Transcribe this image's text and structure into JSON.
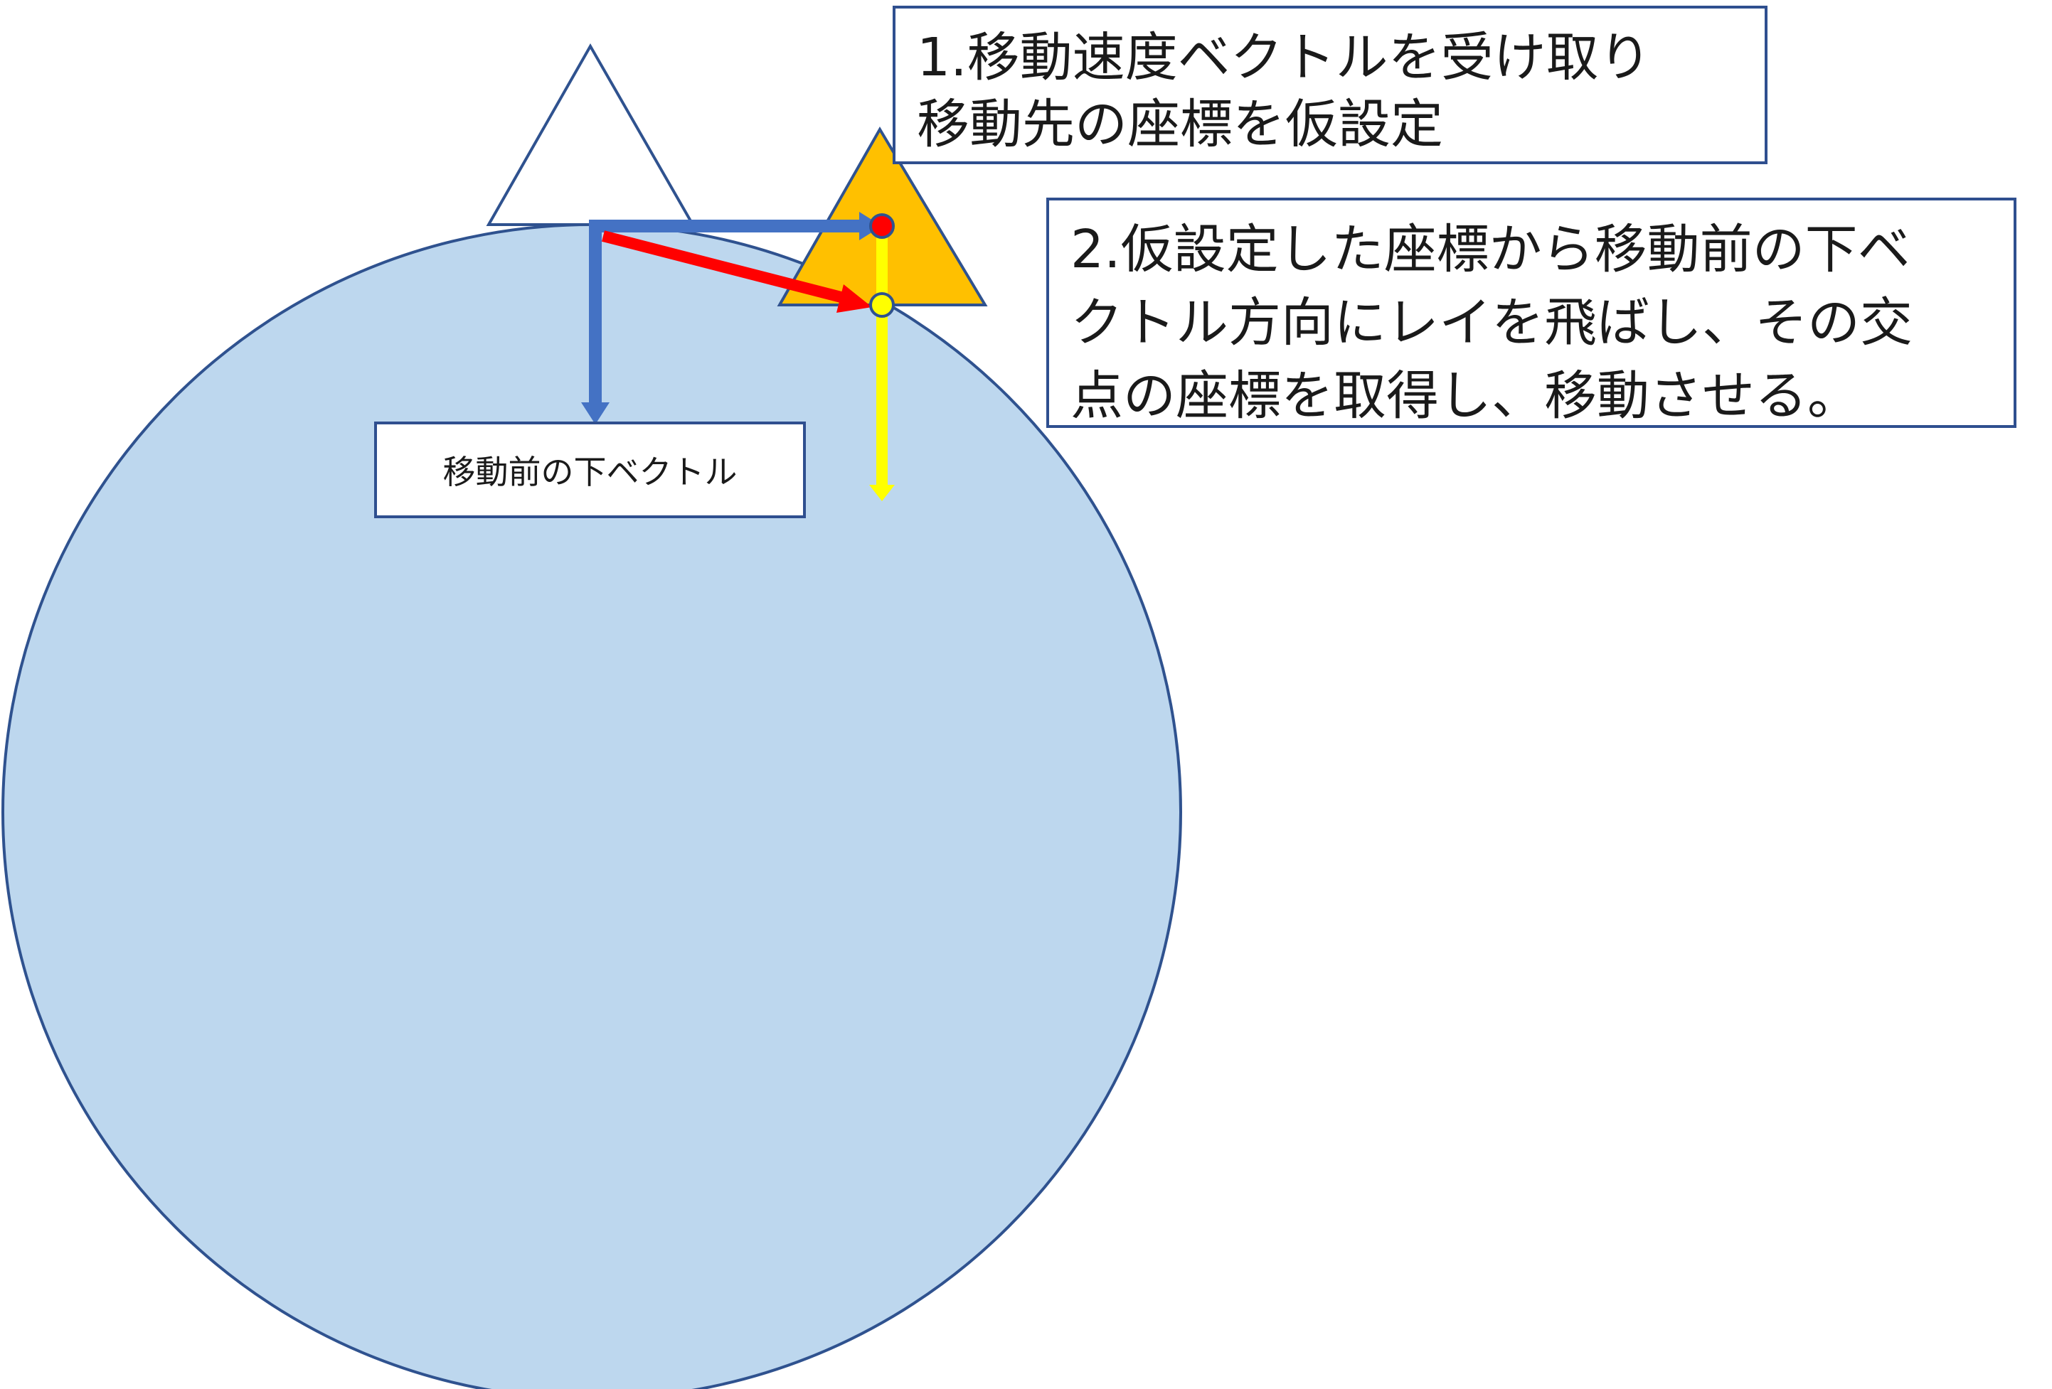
{
  "step1": {
    "lines": [
      "1.移動速度ベクトルを受け取り",
      "移動先の座標を仮設定"
    ]
  },
  "step2": {
    "lines": [
      "2.仮設定した座標から移動前の下ベ",
      "クトル方向にレイを飛ばし、その交",
      "点の座標を取得し、移動させる。"
    ]
  },
  "down_vector_label": "移動前の下ベクトル",
  "colors": {
    "sphere_fill": "#bdd7ee",
    "sphere_stroke": "#2f528f",
    "before_triangle_fill": "#ffffff",
    "after_triangle_fill": "#ffc000",
    "blue_vector": "#4472c4",
    "red_vector": "#ff0000",
    "yellow_ray": "#ffff00",
    "temp_point": "#ff0000",
    "hit_point": "#ffff00",
    "box_border": "#2f4f8f"
  }
}
